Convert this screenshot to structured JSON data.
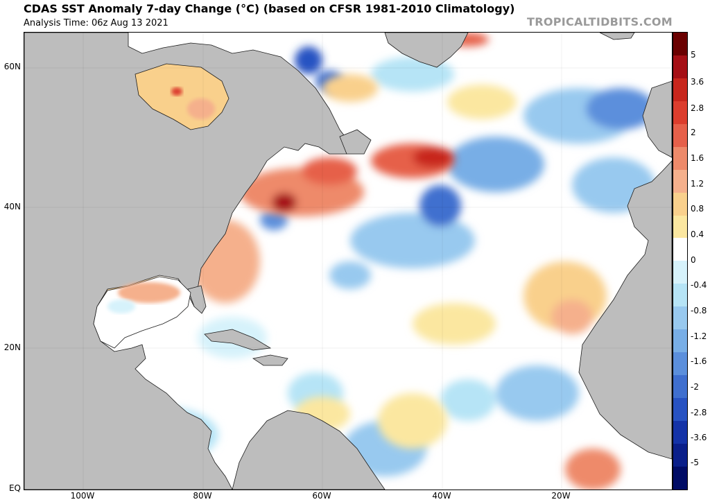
{
  "header": {
    "title": "CDAS SST Anomaly 7-day Change (°C) (based on CFSR 1981-2010 Climatology)",
    "subtitle": "Analysis Time: 06z Aug 13 2021",
    "brand": "TROPICALTIDBITS.COM"
  },
  "map": {
    "region": "North Atlantic",
    "lat_range": [
      0,
      65
    ],
    "lon_range": [
      -110,
      0
    ],
    "lat_labels": [
      "60N",
      "40N",
      "20N",
      "EQ"
    ],
    "lon_labels": [
      "100W",
      "80W",
      "60W",
      "40W",
      "20W"
    ],
    "colors": {
      "land": "#bdbdbd",
      "ocean_zero": "#ffffff",
      "border": "#000000",
      "brand": "#9a9a9a"
    }
  },
  "colorbar": {
    "tick_labels": [
      "5",
      "3.6",
      "2.8",
      "2",
      "1.6",
      "1.2",
      "0.8",
      "0.4",
      "0",
      "-0.4",
      "-0.8",
      "-1.2",
      "-1.6",
      "-2",
      "-2.8",
      "-3.6",
      "-5"
    ],
    "colors": [
      "#6a0000",
      "#a50f15",
      "#c8261c",
      "#dc3d2d",
      "#e6604a",
      "#ee8a6a",
      "#f5b08c",
      "#f9d08c",
      "#fbe7a0",
      "#ffffff",
      "#d6f2fb",
      "#b6e4f6",
      "#98c9ef",
      "#78aee6",
      "#5b8fdc",
      "#3f6fcf",
      "#2752c2",
      "#1433a8",
      "#0a1f8a",
      "#000c66"
    ]
  }
}
